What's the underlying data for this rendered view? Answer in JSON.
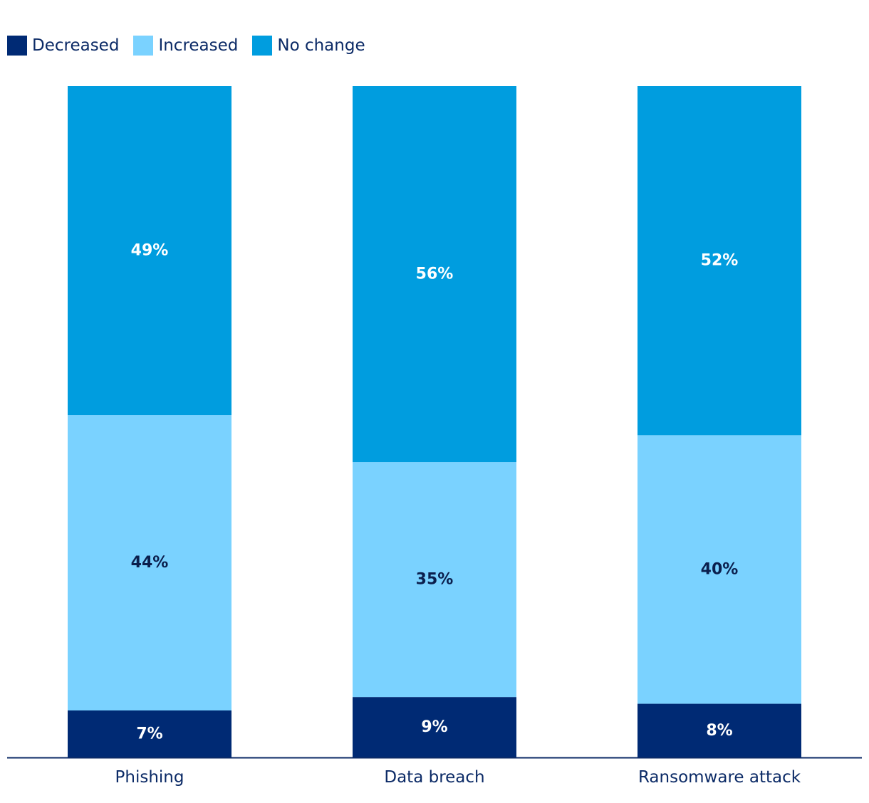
{
  "chart_data": {
    "type": "bar",
    "stacked": true,
    "categories": [
      "Phishing",
      "Data breach",
      "Ransomware attack"
    ],
    "series": [
      {
        "name": "Decreased",
        "values": [
          7,
          9,
          8
        ],
        "labels": [
          "7%",
          "9%",
          "8%"
        ],
        "color": "#002a74",
        "label_color": "#ffffff"
      },
      {
        "name": "Increased",
        "values": [
          44,
          35,
          40
        ],
        "labels": [
          "44%",
          "35%",
          "40%"
        ],
        "color": "#7ad2ff",
        "label_color": "#0b1f4d"
      },
      {
        "name": "No change",
        "values": [
          49,
          56,
          52
        ],
        "labels": [
          "49%",
          "56%",
          "52%"
        ],
        "color": "#009ddf",
        "label_color": "#ffffff"
      }
    ],
    "title": "",
    "xlabel": "",
    "ylabel": "",
    "ylim": [
      0,
      100
    ],
    "grid": false,
    "legend_position": "top-left",
    "axis_color": "#0b2a66",
    "tick_label_color": "#0b2a66"
  }
}
